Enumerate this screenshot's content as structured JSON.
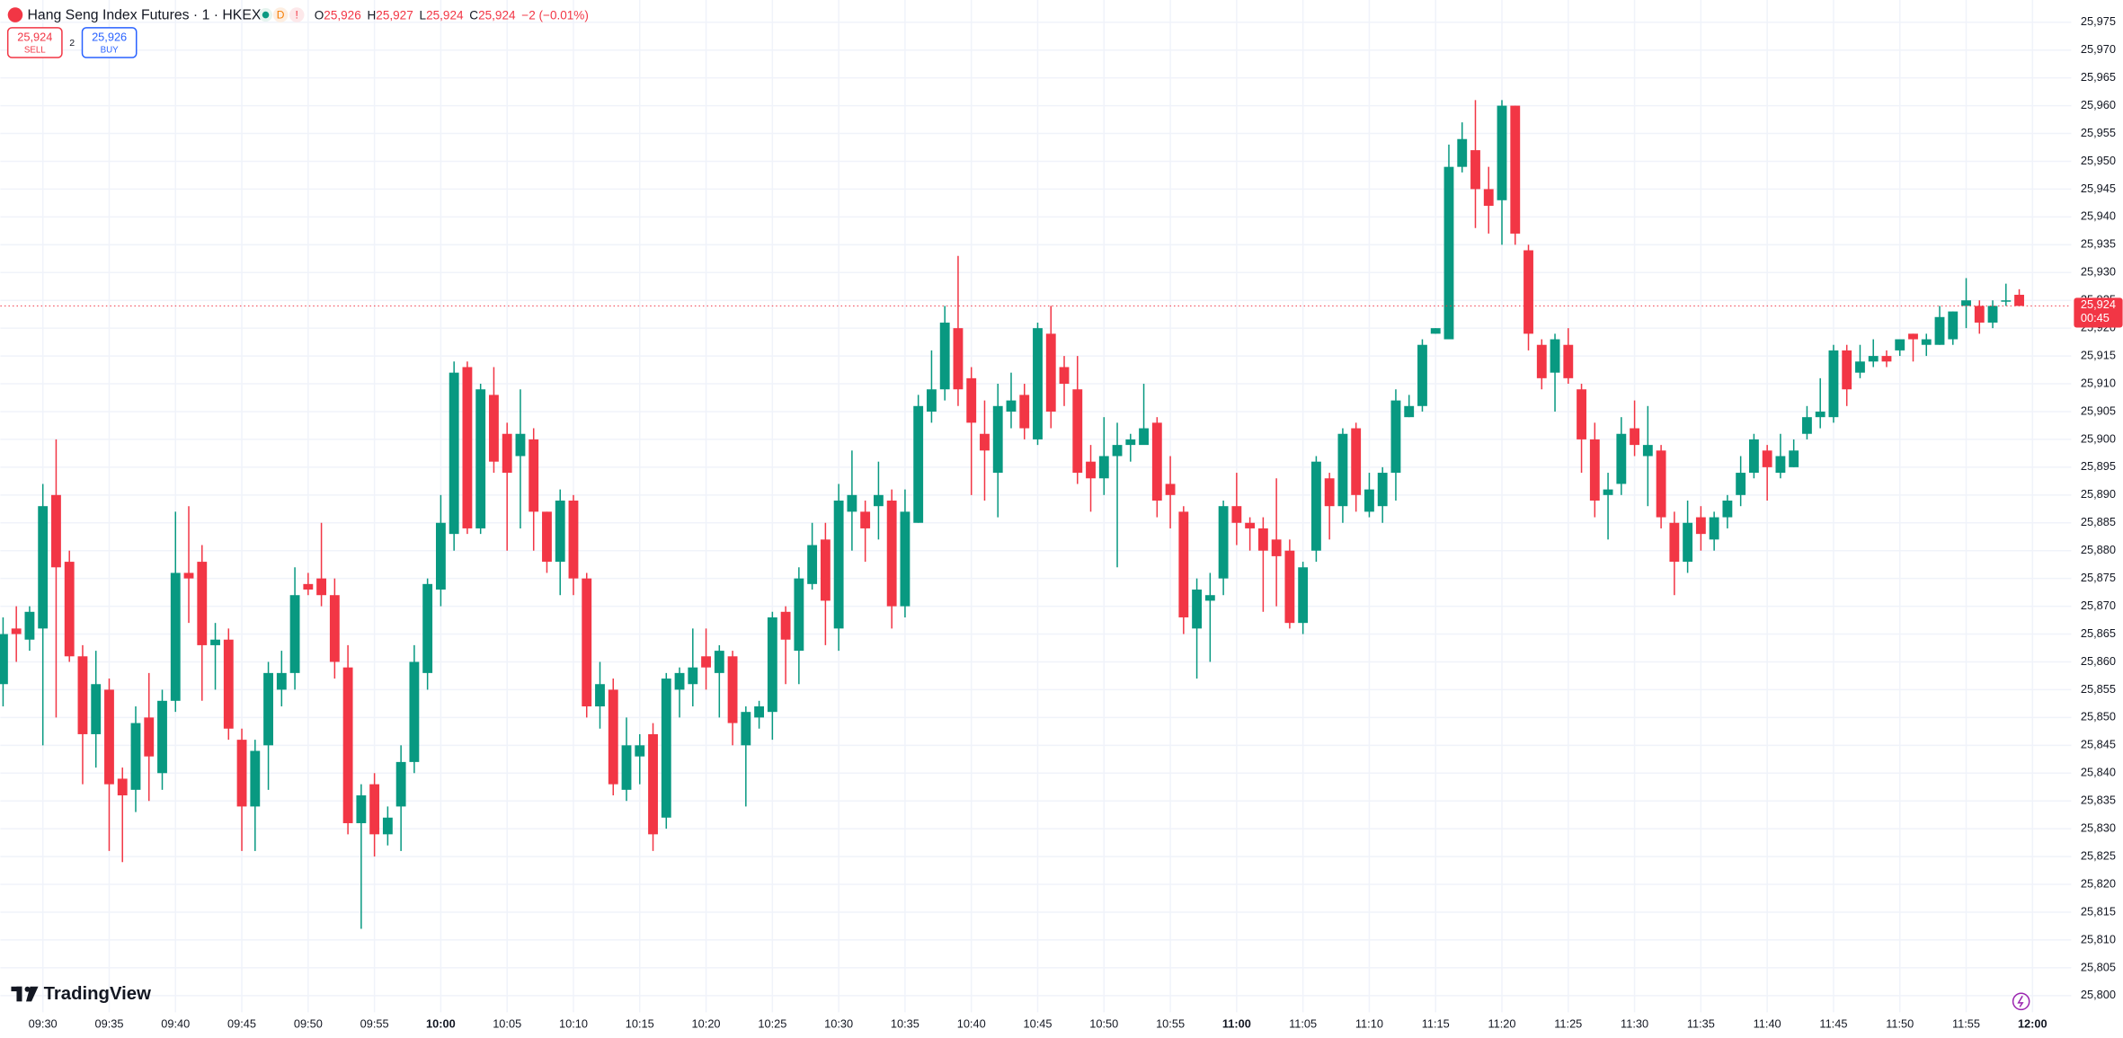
{
  "header": {
    "title": "Hang Seng Index Futures · 1 · HKEX",
    "badge_d": "D",
    "badge_alert": "!",
    "o_label": "O",
    "o_value": "25,926",
    "h_label": "H",
    "h_value": "25,927",
    "l_label": "L",
    "l_value": "25,924",
    "c_label": "C",
    "c_value": "25,924",
    "change": "−2 (−0.01%)"
  },
  "trade": {
    "sell_price": "25,924",
    "sell_label": "SELL",
    "spread": "2",
    "buy_price": "25,926",
    "buy_label": "BUY"
  },
  "price_tag": {
    "last_price": "25,924",
    "countdown": "00:45"
  },
  "brand": "TradingView",
  "chart_data": {
    "type": "candlestick",
    "up_color": "#089981",
    "down_color": "#f23645",
    "grid": true,
    "categories": [
      null,
      null,
      null,
      "09:30",
      null,
      null,
      null,
      null,
      "09:35",
      null,
      null,
      null,
      null,
      "09:40",
      null,
      null,
      null,
      null,
      "09:45",
      null,
      null,
      null,
      null,
      "09:50",
      null,
      null,
      null,
      null,
      "09:55",
      null,
      null,
      null,
      null,
      "10:00",
      null,
      null,
      null,
      null,
      "10:05",
      null,
      null,
      null,
      null,
      "10:10",
      null,
      null,
      null,
      null,
      "10:15",
      null,
      null,
      null,
      null,
      "10:20",
      null,
      null,
      null,
      null,
      "10:25",
      null,
      null,
      null,
      null,
      "10:30",
      null,
      null,
      null,
      null,
      "10:35",
      null,
      null,
      null,
      null,
      "10:40",
      null,
      null,
      null,
      null,
      "10:45",
      null,
      null,
      null,
      null,
      "10:50",
      null,
      null,
      null,
      null,
      "10:55",
      null,
      null,
      null,
      null,
      "11:00",
      null,
      null,
      null,
      null,
      "11:05",
      null,
      null,
      null,
      null,
      "11:10",
      null,
      null,
      null,
      null,
      "11:15",
      null,
      null,
      null,
      null,
      "11:20",
      null,
      null,
      null,
      null,
      "11:25",
      null,
      null,
      null,
      null,
      "11:30",
      null,
      null,
      null,
      null,
      "11:35",
      null,
      null,
      null,
      null,
      "11:40",
      null,
      null,
      null,
      null,
      "11:45",
      null,
      null,
      null,
      null,
      "11:50",
      null,
      null,
      null,
      null,
      "11:55",
      null,
      null,
      null,
      null,
      "12:00"
    ],
    "open": [
      25856,
      25866,
      25864,
      25866,
      25890,
      25878,
      25861,
      25847,
      25855,
      25839,
      25837,
      25850,
      25840,
      25853,
      25876,
      25878,
      25863,
      25864,
      25846,
      25834,
      25845,
      25855,
      25858,
      25874,
      25875,
      25872,
      25859,
      25831,
      25838,
      25829,
      25834,
      25842,
      25858,
      25873,
      25883,
      25913,
      25884,
      25908,
      25901,
      25897,
      25900,
      25887,
      25878,
      25889,
      25875,
      25852,
      25855,
      25837,
      25843,
      25847,
      25832,
      25855,
      25856,
      25861,
      25858,
      25861,
      25845,
      25850,
      25851,
      25869,
      25862,
      25874,
      25882,
      25866,
      25887,
      25887,
      25888,
      25889,
      25870,
      25885,
      25905,
      25909,
      25920,
      25911,
      25901,
      25894,
      25905,
      25908,
      25900,
      25919,
      25913,
      25909,
      25896,
      25893,
      25897,
      25899,
      25899,
      25903,
      25892,
      25887,
      25866,
      25871,
      25875,
      25888,
      25885,
      25884,
      25882,
      25880,
      25867,
      25880,
      25893,
      25888,
      25902,
      25887,
      25888,
      25894,
      25904,
      25906,
      25919,
      25918,
      25949,
      25952,
      25945,
      25943,
      25960,
      25934,
      25917,
      25912,
      25917,
      25909,
      25900,
      25890,
      25892,
      25902,
      25897,
      25898,
      25885,
      25878,
      25886,
      25882,
      25886,
      25890,
      25894,
      25898,
      25894,
      25895,
      25901,
      25904,
      25904,
      25916,
      25912,
      25914,
      25915,
      25916,
      25919,
      25917,
      25917,
      25918,
      25924,
      25924,
      25921,
      25925,
      25926,
      null
    ],
    "high": [
      25868,
      25870,
      25870,
      25892,
      25900,
      25880,
      25863,
      25862,
      25857,
      25841,
      25852,
      25858,
      25855,
      25887,
      25888,
      25881,
      25867,
      25866,
      25848,
      25846,
      25860,
      25862,
      25877,
      25876,
      25885,
      25875,
      25863,
      25838,
      25840,
      25834,
      25845,
      25863,
      25875,
      25890,
      25914,
      25914,
      25910,
      25913,
      25903,
      25909,
      25902,
      25887,
      25891,
      25890,
      25876,
      25860,
      25857,
      25850,
      25847,
      25849,
      25858,
      25859,
      25866,
      25866,
      25863,
      25862,
      25852,
      25853,
      25869,
      25870,
      25877,
      25885,
      25885,
      25892,
      25898,
      25889,
      25896,
      25891,
      25891,
      25908,
      25916,
      25924,
      25933,
      25913,
      25907,
      25910,
      25912,
      25910,
      25921,
      25924,
      25915,
      25915,
      25899,
      25904,
      25903,
      25901,
      25910,
      25904,
      25897,
      25888,
      25875,
      25876,
      25889,
      25894,
      25886,
      25886,
      25893,
      25882,
      25878,
      25897,
      25894,
      25902,
      25903,
      25894,
      25895,
      25909,
      25908,
      25918,
      25920,
      25953,
      25957,
      25961,
      25949,
      25961,
      25960,
      25935,
      25918,
      25919,
      25920,
      25910,
      25903,
      25894,
      25904,
      25907,
      25906,
      25899,
      25887,
      25889,
      25888,
      25887,
      25890,
      25897,
      25901,
      25899,
      25901,
      25900,
      25906,
      25911,
      25917,
      25917,
      25917,
      25918,
      25916,
      25918,
      25919,
      25919,
      25924,
      25923,
      25929,
      25925,
      25925,
      25928,
      25927,
      null
    ],
    "low": [
      25852,
      25860,
      25862,
      25845,
      25850,
      25860,
      25838,
      25841,
      25826,
      25824,
      25833,
      25835,
      25837,
      25851,
      25867,
      25853,
      25855,
      25846,
      25826,
      25826,
      25837,
      25852,
      25855,
      25872,
      25870,
      25857,
      25829,
      25812,
      25825,
      25827,
      25826,
      25840,
      25855,
      25870,
      25880,
      25883,
      25883,
      25894,
      25880,
      25884,
      25880,
      25876,
      25872,
      25872,
      25850,
      25848,
      25836,
      25835,
      25838,
      25826,
      25830,
      25850,
      25852,
      25855,
      25850,
      25845,
      25834,
      25848,
      25846,
      25856,
      25856,
      25873,
      25863,
      25862,
      25880,
      25878,
      25882,
      25866,
      25868,
      25885,
      25903,
      25907,
      25906,
      25890,
      25889,
      25886,
      25902,
      25900,
      25899,
      25902,
      25906,
      25892,
      25887,
      25890,
      25877,
      25896,
      25900,
      25886,
      25884,
      25865,
      25857,
      25860,
      25872,
      25881,
      25880,
      25869,
      25870,
      25866,
      25865,
      25878,
      25882,
      25885,
      25887,
      25886,
      25885,
      25889,
      25904,
      25905,
      25919,
      25918,
      25948,
      25938,
      25937,
      25935,
      25935,
      25916,
      25909,
      25905,
      25910,
      25894,
      25886,
      25882,
      25890,
      25897,
      25888,
      25884,
      25872,
      25876,
      25880,
      25880,
      25884,
      25888,
      25893,
      25889,
      25893,
      25895,
      25900,
      25902,
      25903,
      25906,
      25911,
      25913,
      25913,
      25915,
      25914,
      25915,
      25917,
      25917,
      25920,
      25919,
      25920,
      25924,
      25924,
      null
    ],
    "close": [
      25865,
      25865,
      25869,
      25888,
      25877,
      25861,
      25847,
      25856,
      25838,
      25836,
      25849,
      25843,
      25853,
      25876,
      25875,
      25863,
      25864,
      25848,
      25834,
      25844,
      25858,
      25858,
      25872,
      25873,
      25872,
      25860,
      25831,
      25836,
      25829,
      25832,
      25842,
      25860,
      25874,
      25885,
      25912,
      25884,
      25909,
      25896,
      25894,
      25901,
      25887,
      25878,
      25889,
      25875,
      25852,
      25856,
      25838,
      25845,
      25845,
      25829,
      25857,
      25858,
      25859,
      25859,
      25862,
      25849,
      25851,
      25852,
      25868,
      25864,
      25875,
      25881,
      25871,
      25889,
      25890,
      25884,
      25890,
      25870,
      25887,
      25906,
      25909,
      25921,
      25909,
      25903,
      25898,
      25906,
      25907,
      25902,
      25920,
      25905,
      25910,
      25894,
      25893,
      25897,
      25899,
      25900,
      25902,
      25889,
      25890,
      25868,
      25873,
      25872,
      25888,
      25885,
      25884,
      25880,
      25879,
      25867,
      25877,
      25896,
      25888,
      25901,
      25890,
      25891,
      25894,
      25907,
      25906,
      25917,
      25920,
      25949,
      25954,
      25945,
      25942,
      25960,
      25937,
      25919,
      25911,
      25918,
      25911,
      25900,
      25889,
      25891,
      25901,
      25899,
      25899,
      25886,
      25878,
      25885,
      25883,
      25886,
      25889,
      25894,
      25900,
      25895,
      25897,
      25898,
      25904,
      25905,
      25916,
      25909,
      25914,
      25915,
      25914,
      25918,
      25918,
      25918,
      25922,
      25923,
      25925,
      25921,
      25924,
      25925,
      25924,
      null
    ],
    "ylim": [
      25797,
      25979
    ],
    "yticks": [
      {
        "value": 25800,
        "label": "25,800"
      },
      {
        "value": 25805,
        "label": "25,805"
      },
      {
        "value": 25810,
        "label": "25,810"
      },
      {
        "value": 25815,
        "label": "25,815"
      },
      {
        "value": 25820,
        "label": "25,820"
      },
      {
        "value": 25825,
        "label": "25,825"
      },
      {
        "value": 25830,
        "label": "25,830"
      },
      {
        "value": 25835,
        "label": "25,835"
      },
      {
        "value": 25840,
        "label": "25,840"
      },
      {
        "value": 25845,
        "label": "25,845"
      },
      {
        "value": 25850,
        "label": "25,850"
      },
      {
        "value": 25855,
        "label": "25,855"
      },
      {
        "value": 25860,
        "label": "25,860"
      },
      {
        "value": 25865,
        "label": "25,865"
      },
      {
        "value": 25870,
        "label": "25,870"
      },
      {
        "value": 25875,
        "label": "25,875"
      },
      {
        "value": 25880,
        "label": "25,880"
      },
      {
        "value": 25885,
        "label": "25,885"
      },
      {
        "value": 25890,
        "label": "25,890"
      },
      {
        "value": 25895,
        "label": "25,895"
      },
      {
        "value": 25900,
        "label": "25,900"
      },
      {
        "value": 25905,
        "label": "25,905"
      },
      {
        "value": 25910,
        "label": "25,910"
      },
      {
        "value": 25915,
        "label": "25,915"
      },
      {
        "value": 25920,
        "label": "25,920"
      },
      {
        "value": 25925,
        "label": "25,925"
      },
      {
        "value": 25930,
        "label": "25,930"
      },
      {
        "value": 25935,
        "label": "25,935"
      },
      {
        "value": 25940,
        "label": "25,940"
      },
      {
        "value": 25945,
        "label": "25,945"
      },
      {
        "value": 25950,
        "label": "25,950"
      },
      {
        "value": 25955,
        "label": "25,955"
      },
      {
        "value": 25960,
        "label": "25,960"
      },
      {
        "value": 25965,
        "label": "25,965"
      },
      {
        "value": 25970,
        "label": "25,970"
      },
      {
        "value": 25975,
        "label": "25,975"
      }
    ],
    "last_value": 25924
  }
}
